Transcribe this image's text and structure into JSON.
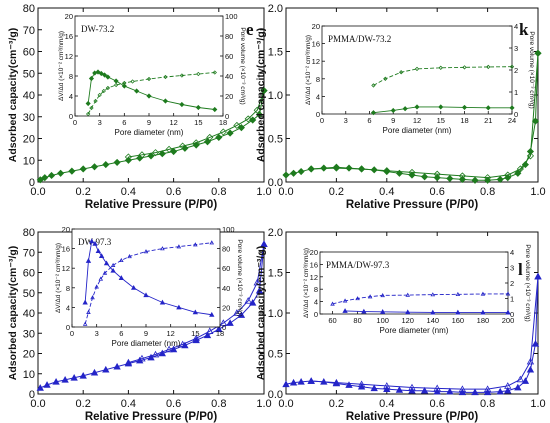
{
  "chart_data": [
    {
      "panel": "e",
      "type": "line",
      "xlabel": "Relative Pressure (P/P0)",
      "ylabel": "Adsorbed capacity(cm⁻³/g)",
      "xlim": [
        0,
        1
      ],
      "ylim": [
        0,
        80
      ],
      "xticks": [
        0.0,
        0.2,
        0.4,
        0.6,
        0.8,
        1.0
      ],
      "xtick_labels": [
        "0.0",
        "0.2",
        "0.4",
        "0.6",
        "0.8",
        "1.0"
      ],
      "yticks": [
        0,
        10,
        20,
        30,
        40,
        50,
        60,
        70,
        80
      ],
      "ytick_labels": [
        "0",
        "10",
        "20",
        "30",
        "40",
        "50",
        "60",
        "70",
        "80"
      ],
      "color": "#1e7b1e",
      "marker": "diamond",
      "series": [
        {
          "x": [
            0.01,
            0.03,
            0.06,
            0.1,
            0.15,
            0.2,
            0.25,
            0.3,
            0.35,
            0.4,
            0.45,
            0.5,
            0.55,
            0.6,
            0.65,
            0.7,
            0.75,
            0.8,
            0.85,
            0.9,
            0.95,
            0.98,
            1.0
          ],
          "y": [
            1,
            2,
            3,
            4,
            5,
            6,
            7,
            8,
            9,
            10,
            11,
            12,
            13,
            14,
            15.5,
            17,
            18.5,
            20.5,
            22.5,
            25,
            28.5,
            31,
            42
          ]
        },
        {
          "x": [
            1.0,
            0.97,
            0.93,
            0.88,
            0.82,
            0.76,
            0.7,
            0.64,
            0.58,
            0.52,
            0.46,
            0.4
          ],
          "y": [
            42,
            33,
            29,
            26,
            23,
            20.5,
            18,
            16.5,
            15,
            13.5,
            12.5,
            11.5
          ]
        }
      ],
      "inset": {
        "label": "DW-73.2",
        "xlabel": "Pore diameter (nm)",
        "ylabel": "ΔV/Δd (×10⁻² cm³/nm/g)",
        "y2label": "Pore volume (×10⁻³ cm³/g)",
        "xlim": [
          0,
          18
        ],
        "ylim": [
          0,
          20
        ],
        "y2lim": [
          0,
          100
        ],
        "xticks": [
          0,
          3,
          6,
          9,
          12,
          15,
          18
        ],
        "yticks": [
          0,
          4,
          8,
          12,
          16,
          20
        ],
        "y2ticks": [
          0,
          20,
          40,
          60,
          80,
          100
        ],
        "dist": {
          "x": [
            1.6,
            2.0,
            2.4,
            2.8,
            3.2,
            3.6,
            4.0,
            5.0,
            6.0,
            7.5,
            9.0,
            11.0,
            13.0,
            15.0,
            17.0
          ],
          "y": [
            2.5,
            7.5,
            8.6,
            8.8,
            8.5,
            8.2,
            7.8,
            7.0,
            6.0,
            5.0,
            4.0,
            3.0,
            2.3,
            1.7,
            1.3
          ]
        },
        "cum": {
          "x": [
            1.6,
            2.0,
            2.5,
            3.0,
            3.5,
            4.0,
            5.0,
            6.0,
            7.0,
            9.0,
            11.0,
            13.0,
            15.0,
            17.0
          ],
          "y": [
            2,
            8,
            15,
            21,
            25,
            28,
            31,
            33,
            34.5,
            37,
            39,
            40.5,
            42,
            43.5
          ]
        }
      }
    },
    {
      "panel": "k",
      "type": "line",
      "xlabel": "Relative Pressure (P/P0)",
      "ylabel": "Adsorbed capacity(cm⁻³/g)",
      "xlim": [
        0,
        1
      ],
      "ylim": [
        0,
        2
      ],
      "xticks": [
        0.0,
        0.2,
        0.4,
        0.6,
        0.8,
        1.0
      ],
      "xtick_labels": [
        "0.0",
        "0.2",
        "0.4",
        "0.6",
        "0.8",
        "1.0"
      ],
      "yticks": [
        0.0,
        0.5,
        1.0,
        1.5,
        2.0
      ],
      "ytick_labels": [
        "0.0",
        "0.5",
        "1.0",
        "1.5",
        "2.0"
      ],
      "color": "#1e7b1e",
      "marker": "diamond",
      "series": [
        {
          "x": [
            0.0,
            0.03,
            0.06,
            0.1,
            0.15,
            0.2,
            0.25,
            0.3,
            0.35,
            0.4,
            0.45,
            0.5,
            0.55,
            0.6,
            0.65,
            0.7,
            0.75,
            0.8,
            0.85,
            0.88,
            0.92,
            0.95,
            0.97,
            0.99,
            1.0
          ],
          "y": [
            0.08,
            0.1,
            0.12,
            0.15,
            0.16,
            0.17,
            0.16,
            0.15,
            0.14,
            0.12,
            0.1,
            0.08,
            0.06,
            0.05,
            0.04,
            0.03,
            0.02,
            0.02,
            0.03,
            0.05,
            0.1,
            0.2,
            0.35,
            0.7,
            1.48
          ]
        },
        {
          "x": [
            1.0,
            0.97,
            0.93,
            0.88,
            0.8,
            0.7,
            0.6,
            0.5,
            0.4,
            0.3,
            0.2,
            0.1
          ],
          "y": [
            1.48,
            0.3,
            0.15,
            0.08,
            0.05,
            0.07,
            0.09,
            0.11,
            0.13,
            0.15,
            0.16,
            0.15
          ]
        }
      ],
      "inset": {
        "label": "PMMA/DW-73.2",
        "xlabel": "Pore diameter (nm)",
        "ylabel": "ΔV/Δd (×10⁻² cm³/nm/g)",
        "y2label": "Pore volume (×10⁻³ cm³/g)",
        "xlim": [
          0,
          24
        ],
        "ylim": [
          0,
          20
        ],
        "y2lim": [
          0,
          4
        ],
        "xticks": [
          0,
          3,
          6,
          9,
          12,
          15,
          18,
          21,
          24
        ],
        "yticks": [
          0,
          4,
          8,
          12,
          16,
          20
        ],
        "y2ticks": [
          0,
          1,
          2,
          3,
          4
        ],
        "dist": {
          "x": [
            6.5,
            9.0,
            10.5,
            12.0,
            15.0,
            18.0,
            21.0,
            24.0
          ],
          "y": [
            0.3,
            0.8,
            1.2,
            1.6,
            1.6,
            1.5,
            1.4,
            1.4
          ]
        },
        "cum": {
          "x": [
            6.5,
            8.0,
            10.0,
            12.0,
            15.0,
            18.0,
            21.0,
            24.0
          ],
          "y": [
            1.3,
            1.6,
            1.9,
            2.05,
            2.1,
            2.12,
            2.14,
            2.15
          ]
        }
      }
    },
    {
      "panel": "f",
      "type": "line",
      "xlabel": "Relative Pressure (P/P0)",
      "ylabel": "Adsorbed capacity(cm⁻³/g)",
      "xlim": [
        0,
        1
      ],
      "ylim": [
        0,
        80
      ],
      "xticks": [
        0.0,
        0.2,
        0.4,
        0.6,
        0.8,
        1.0
      ],
      "xtick_labels": [
        "0.0",
        "0.2",
        "0.4",
        "0.6",
        "0.8",
        "1.0"
      ],
      "yticks": [
        0,
        10,
        20,
        30,
        40,
        50,
        60,
        70,
        80
      ],
      "ytick_labels": [
        "0",
        "10",
        "20",
        "30",
        "40",
        "50",
        "60",
        "70",
        "80"
      ],
      "color": "#2424c8",
      "marker": "triangle",
      "series": [
        {
          "x": [
            0.01,
            0.04,
            0.08,
            0.12,
            0.16,
            0.2,
            0.25,
            0.3,
            0.35,
            0.4,
            0.45,
            0.5,
            0.55,
            0.6,
            0.65,
            0.7,
            0.75,
            0.8,
            0.85,
            0.9,
            0.95,
            0.98,
            1.0
          ],
          "y": [
            3,
            4.5,
            6,
            7,
            8,
            9,
            10.5,
            12,
            13.5,
            15,
            16.5,
            18,
            20,
            22,
            24,
            26.5,
            29,
            32,
            35,
            39,
            45,
            51,
            74
          ]
        },
        {
          "x": [
            1.0,
            0.97,
            0.93,
            0.88,
            0.82,
            0.76,
            0.7,
            0.64,
            0.58,
            0.52,
            0.46,
            0.4
          ],
          "y": [
            74,
            55,
            46,
            40,
            35,
            31,
            27.5,
            24.5,
            22,
            19.5,
            17.5,
            15.5
          ]
        }
      ],
      "inset": {
        "label": "DW-97.3",
        "xlabel": "Pore diameter (nm)",
        "ylabel": "ΔV/Δd (×10⁻² cm³/nm/g)",
        "y2label": "Pore volume (×10⁻³ cm³/g)",
        "xlim": [
          0,
          18
        ],
        "ylim": [
          0,
          20
        ],
        "y2lim": [
          0,
          100
        ],
        "xticks": [
          0,
          3,
          6,
          9,
          12,
          15,
          18
        ],
        "yticks": [
          0,
          4,
          8,
          12,
          16,
          20
        ],
        "y2ticks": [
          0,
          20,
          40,
          60,
          80,
          100
        ],
        "dist": {
          "x": [
            1.6,
            2.0,
            2.4,
            2.8,
            3.2,
            3.6,
            4.2,
            5.0,
            6.0,
            7.5,
            9.0,
            11.0,
            13.0,
            15.0,
            17.0
          ],
          "y": [
            5.0,
            13.5,
            17.5,
            17.0,
            15.5,
            14.5,
            13.0,
            11.5,
            10.0,
            8.0,
            6.5,
            5.0,
            4.0,
            3.0,
            2.5
          ]
        },
        "cum": {
          "x": [
            1.6,
            2.0,
            2.5,
            3.0,
            3.5,
            4.0,
            5.0,
            6.0,
            7.0,
            9.0,
            11.0,
            13.0,
            15.0,
            17.0
          ],
          "y": [
            3,
            15,
            30,
            41,
            49,
            55,
            63,
            68,
            72,
            77,
            80,
            82,
            84,
            86
          ]
        }
      }
    },
    {
      "panel": "l",
      "type": "line",
      "xlabel": "Relative Pressure (P/P0)",
      "ylabel": "Adsorbed capacity(cm⁻³/g)",
      "xlim": [
        0,
        1
      ],
      "ylim": [
        0,
        2
      ],
      "xticks": [
        0.0,
        0.2,
        0.4,
        0.6,
        0.8,
        1.0
      ],
      "xtick_labels": [
        "0.0",
        "0.2",
        "0.4",
        "0.6",
        "0.8",
        "1.0"
      ],
      "yticks": [
        0.0,
        0.5,
        1.0,
        1.5,
        2.0
      ],
      "ytick_labels": [
        "0.0",
        "0.5",
        "1.0",
        "1.5",
        "2.0"
      ],
      "color": "#2424c8",
      "marker": "triangle",
      "series": [
        {
          "x": [
            0.0,
            0.03,
            0.06,
            0.1,
            0.15,
            0.2,
            0.25,
            0.3,
            0.35,
            0.4,
            0.45,
            0.5,
            0.55,
            0.6,
            0.65,
            0.7,
            0.75,
            0.8,
            0.85,
            0.88,
            0.92,
            0.95,
            0.97,
            0.99,
            1.0
          ],
          "y": [
            0.12,
            0.14,
            0.15,
            0.16,
            0.15,
            0.13,
            0.11,
            0.09,
            0.07,
            0.06,
            0.05,
            0.04,
            0.04,
            0.03,
            0.03,
            0.02,
            0.02,
            0.02,
            0.03,
            0.04,
            0.08,
            0.16,
            0.3,
            0.62,
            1.45
          ]
        },
        {
          "x": [
            1.0,
            0.97,
            0.93,
            0.88,
            0.8,
            0.7,
            0.6,
            0.5,
            0.4,
            0.3,
            0.2,
            0.1
          ],
          "y": [
            1.45,
            0.4,
            0.18,
            0.1,
            0.06,
            0.06,
            0.07,
            0.08,
            0.1,
            0.12,
            0.14,
            0.16
          ]
        }
      ],
      "inset": {
        "label": "PMMA/DW-97.3",
        "xlabel": "Pore diameter (nm)",
        "ylabel": "ΔV/Δd (×10⁻² cm³/nm/g)",
        "y2label": "Pore volume (×10⁻³ cm³/g)",
        "xlim": [
          50,
          200
        ],
        "ylim": [
          0,
          20
        ],
        "y2lim": [
          0,
          4
        ],
        "xticks": [
          60,
          80,
          100,
          120,
          140,
          160,
          180,
          200
        ],
        "yticks": [
          0,
          4,
          8,
          12,
          16,
          20
        ],
        "y2ticks": [
          0,
          1,
          2,
          3,
          4
        ],
        "dist": {
          "x": [
            70,
            85,
            100,
            120,
            140,
            160,
            180,
            200
          ],
          "y": [
            1.0,
            0.8,
            0.7,
            0.6,
            0.5,
            0.5,
            0.5,
            0.5
          ]
        },
        "cum": {
          "x": [
            60,
            70,
            80,
            90,
            100,
            120,
            140,
            160,
            180,
            200
          ],
          "y": [
            0.65,
            0.85,
            1.0,
            1.12,
            1.2,
            1.22,
            1.25,
            1.27,
            1.29,
            1.3
          ]
        }
      }
    }
  ]
}
